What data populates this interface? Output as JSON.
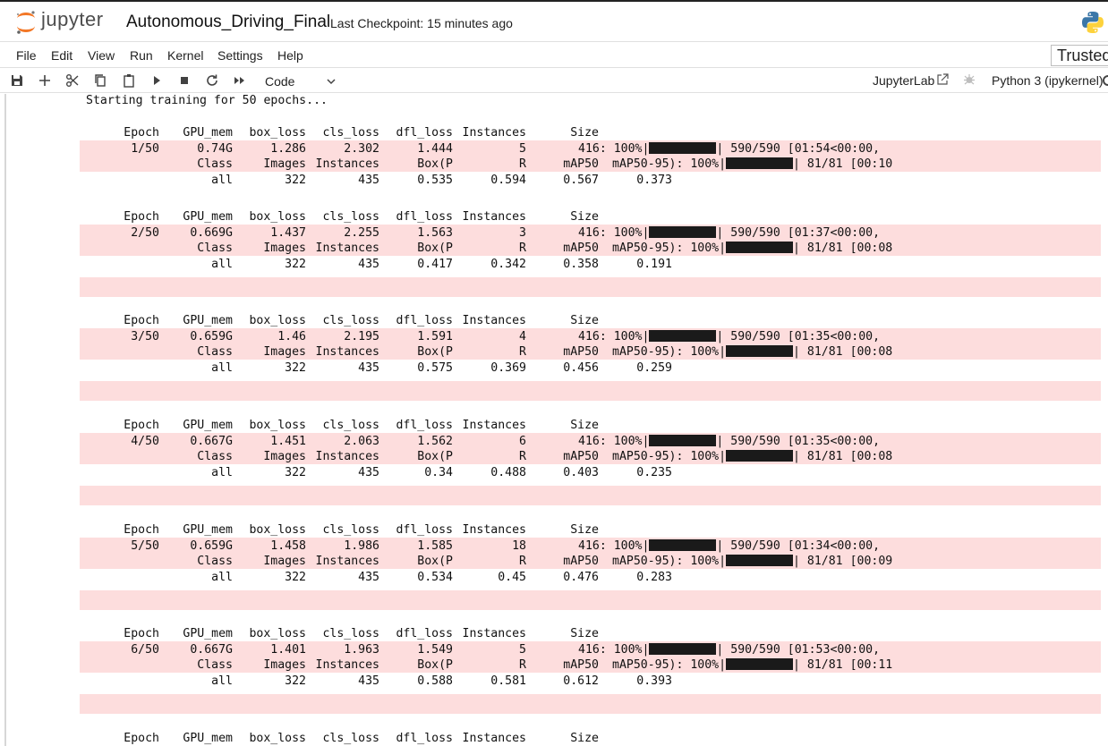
{
  "header": {
    "brand": "jupyter",
    "notebook_title": "Autonomous_Driving_Final",
    "checkpoint": "Last Checkpoint: 15 minutes ago"
  },
  "menu": [
    "File",
    "Edit",
    "View",
    "Run",
    "Kernel",
    "Settings",
    "Help"
  ],
  "trusted_label": "Trusted",
  "toolbar": {
    "icons": [
      "save-icon",
      "add-cell-icon",
      "cut-icon",
      "copy-icon",
      "paste-icon",
      "run-icon",
      "stop-icon",
      "restart-icon",
      "fast-forward-icon"
    ],
    "cell_type": "Code",
    "jupyterlab_label": "JupyterLab",
    "kernel_name": "Python 3 (ipykernel)"
  },
  "output": {
    "start_line": "Starting training for 50 epochs...",
    "train_header": [
      "Epoch",
      "GPU_mem",
      "box_loss",
      "cls_loss",
      "dfl_loss",
      "Instances",
      "Size"
    ],
    "val_header": [
      "Class",
      "Images",
      "Instances",
      "Box(P",
      "R",
      "mAP50",
      "mAP50-95): 100%|"
    ],
    "epochs": [
      {
        "epoch": "1/50",
        "gpu": "0.74G",
        "box": "1.286",
        "cls": "2.302",
        "dfl": "1.444",
        "inst": "5",
        "size": "416: 100%|",
        "train_tail": "| 590/590 [01:54<00:00,",
        "val_tail": "| 81/81 [00:10",
        "all_label": "all",
        "images": "322",
        "vinst": "435",
        "p": "0.535",
        "r": "0.594",
        "map50": "0.567",
        "map5095": "0.373"
      },
      {
        "epoch": "2/50",
        "gpu": "0.669G",
        "box": "1.437",
        "cls": "2.255",
        "dfl": "1.563",
        "inst": "3",
        "size": "416: 100%|",
        "train_tail": "| 590/590 [01:37<00:00,",
        "val_tail": "| 81/81 [00:08",
        "all_label": "all",
        "images": "322",
        "vinst": "435",
        "p": "0.417",
        "r": "0.342",
        "map50": "0.358",
        "map5095": "0.191"
      },
      {
        "epoch": "3/50",
        "gpu": "0.659G",
        "box": "1.46",
        "cls": "2.195",
        "dfl": "1.591",
        "inst": "4",
        "size": "416: 100%|",
        "train_tail": "| 590/590 [01:35<00:00,",
        "val_tail": "| 81/81 [00:08",
        "all_label": "all",
        "images": "322",
        "vinst": "435",
        "p": "0.575",
        "r": "0.369",
        "map50": "0.456",
        "map5095": "0.259"
      },
      {
        "epoch": "4/50",
        "gpu": "0.667G",
        "box": "1.451",
        "cls": "2.063",
        "dfl": "1.562",
        "inst": "6",
        "size": "416: 100%|",
        "train_tail": "| 590/590 [01:35<00:00,",
        "val_tail": "| 81/81 [00:08",
        "all_label": "all",
        "images": "322",
        "vinst": "435",
        "p": "0.34",
        "r": "0.488",
        "map50": "0.403",
        "map5095": "0.235"
      },
      {
        "epoch": "5/50",
        "gpu": "0.659G",
        "box": "1.458",
        "cls": "1.986",
        "dfl": "1.585",
        "inst": "18",
        "size": "416: 100%|",
        "train_tail": "| 590/590 [01:34<00:00,",
        "val_tail": "| 81/81 [00:09",
        "all_label": "all",
        "images": "322",
        "vinst": "435",
        "p": "0.534",
        "r": "0.45",
        "map50": "0.476",
        "map5095": "0.283"
      },
      {
        "epoch": "6/50",
        "gpu": "0.667G",
        "box": "1.401",
        "cls": "1.963",
        "dfl": "1.549",
        "inst": "5",
        "size": "416: 100%|",
        "train_tail": "| 590/590 [01:53<00:00,",
        "val_tail": "| 81/81 [00:11",
        "all_label": "all",
        "images": "322",
        "vinst": "435",
        "p": "0.588",
        "r": "0.581",
        "map50": "0.612",
        "map5095": "0.393"
      }
    ]
  },
  "colors": {
    "stderr_bg": "#fddddd",
    "jupyter_orange": "#f37726"
  }
}
